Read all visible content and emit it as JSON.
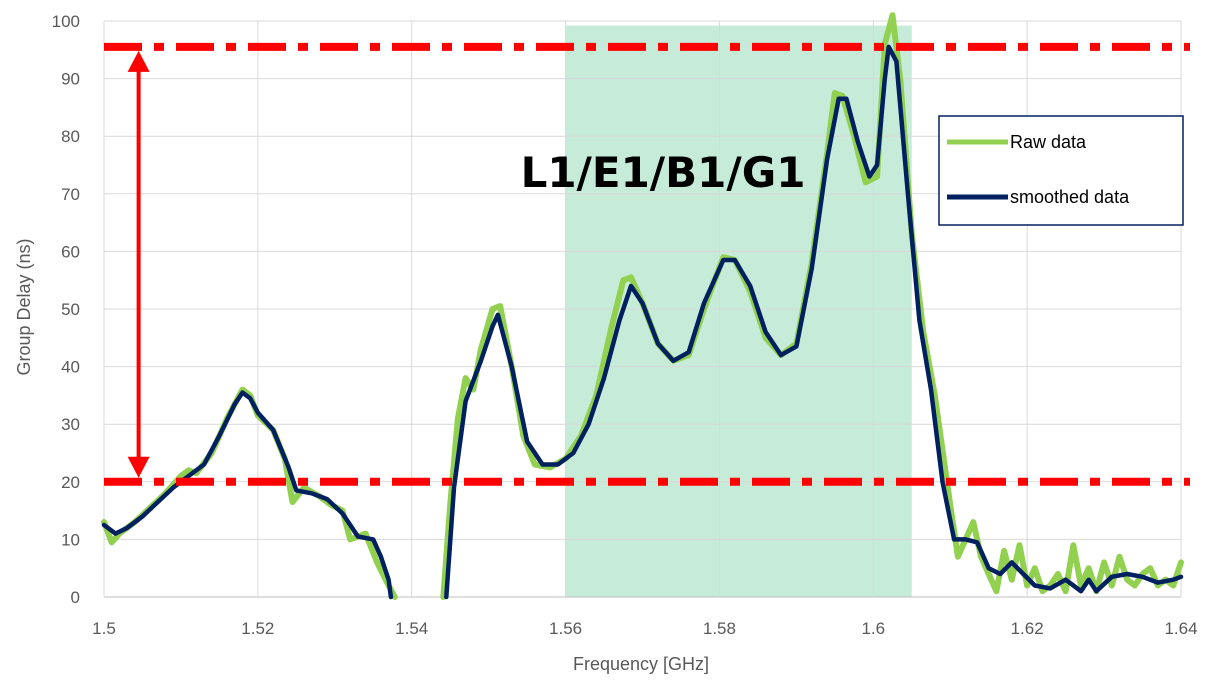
{
  "chart_data": {
    "type": "line",
    "title": "",
    "xlabel": "Frequency [GHz]",
    "ylabel": "Group Delay (ns)",
    "xlim": [
      1.5,
      1.64
    ],
    "ylim": [
      0,
      100
    ],
    "x_ticks": [
      "1.5",
      "1.52",
      "1.54",
      "1.56",
      "1.58",
      "1.6",
      "1.62",
      "1.64"
    ],
    "y_ticks": [
      "0",
      "10",
      "20",
      "30",
      "40",
      "50",
      "60",
      "70",
      "80",
      "90",
      "100"
    ],
    "grid": true,
    "legend_position": "right",
    "band": {
      "label": "L1/E1/B1/G1",
      "x_start": 1.56,
      "x_end": 1.605,
      "color": "#c6ebd9"
    },
    "reference_lines": [
      {
        "y": 95.5,
        "color": "#ff0000",
        "style": "dash-dot"
      },
      {
        "y": 20,
        "color": "#ff0000",
        "style": "dash-dot"
      }
    ],
    "range_arrow": {
      "x": 1.5045,
      "y_from": 20,
      "y_to": 95.5,
      "color": "#ff0000"
    },
    "series": [
      {
        "name": "Raw data",
        "color": "#92d050",
        "points": [
          [
            1.5,
            13
          ],
          [
            1.501,
            9.5
          ],
          [
            1.502,
            11
          ],
          [
            1.504,
            13
          ],
          [
            1.506,
            15.5
          ],
          [
            1.508,
            18
          ],
          [
            1.51,
            21
          ],
          [
            1.511,
            22
          ],
          [
            1.512,
            21.5
          ],
          [
            1.514,
            25
          ],
          [
            1.516,
            31
          ],
          [
            1.518,
            36
          ],
          [
            1.519,
            35
          ],
          [
            1.52,
            31.5
          ],
          [
            1.522,
            29
          ],
          [
            1.5235,
            24
          ],
          [
            1.5245,
            16.5
          ],
          [
            1.526,
            19
          ],
          [
            1.528,
            17.5
          ],
          [
            1.5295,
            16
          ],
          [
            1.531,
            15
          ],
          [
            1.532,
            10
          ],
          [
            1.534,
            11
          ],
          [
            1.5355,
            6
          ],
          [
            1.537,
            2
          ],
          [
            1.5378,
            0
          ],
          [
            1.5441,
            0
          ],
          [
            1.545,
            16
          ],
          [
            1.546,
            31
          ],
          [
            1.547,
            38
          ],
          [
            1.548,
            36
          ],
          [
            1.549,
            43
          ],
          [
            1.5505,
            50
          ],
          [
            1.5515,
            50.5
          ],
          [
            1.553,
            40
          ],
          [
            1.5545,
            28
          ],
          [
            1.556,
            23
          ],
          [
            1.558,
            22.5
          ],
          [
            1.56,
            24
          ],
          [
            1.562,
            28
          ],
          [
            1.564,
            35
          ],
          [
            1.566,
            47
          ],
          [
            1.5675,
            55
          ],
          [
            1.5685,
            55.5
          ],
          [
            1.57,
            51
          ],
          [
            1.572,
            44
          ],
          [
            1.574,
            41
          ],
          [
            1.576,
            42
          ],
          [
            1.578,
            50
          ],
          [
            1.5805,
            59
          ],
          [
            1.582,
            58.5
          ],
          [
            1.584,
            53
          ],
          [
            1.586,
            45
          ],
          [
            1.588,
            42
          ],
          [
            1.59,
            44
          ],
          [
            1.592,
            58
          ],
          [
            1.594,
            77
          ],
          [
            1.595,
            87.5
          ],
          [
            1.596,
            87
          ],
          [
            1.5975,
            80
          ],
          [
            1.599,
            72
          ],
          [
            1.6005,
            73
          ],
          [
            1.6015,
            96
          ],
          [
            1.6025,
            101
          ],
          [
            1.6035,
            90
          ],
          [
            1.605,
            63
          ],
          [
            1.6065,
            46
          ],
          [
            1.608,
            35
          ],
          [
            1.61,
            16
          ],
          [
            1.611,
            7
          ],
          [
            1.612,
            10
          ],
          [
            1.613,
            13
          ],
          [
            1.614,
            7
          ],
          [
            1.615,
            4
          ],
          [
            1.616,
            1
          ],
          [
            1.617,
            8
          ],
          [
            1.618,
            3
          ],
          [
            1.619,
            9
          ],
          [
            1.62,
            2
          ],
          [
            1.621,
            5
          ],
          [
            1.622,
            1
          ],
          [
            1.623,
            2
          ],
          [
            1.624,
            4
          ],
          [
            1.625,
            1
          ],
          [
            1.626,
            9
          ],
          [
            1.627,
            2
          ],
          [
            1.628,
            5
          ],
          [
            1.629,
            1
          ],
          [
            1.63,
            6
          ],
          [
            1.631,
            2
          ],
          [
            1.632,
            7
          ],
          [
            1.633,
            3
          ],
          [
            1.634,
            2
          ],
          [
            1.635,
            4
          ],
          [
            1.636,
            5
          ],
          [
            1.637,
            2
          ],
          [
            1.638,
            3
          ],
          [
            1.639,
            2
          ],
          [
            1.64,
            6
          ]
        ]
      },
      {
        "name": "smoothed data",
        "color": "#002060",
        "points": [
          [
            1.5,
            12.5
          ],
          [
            1.5015,
            11
          ],
          [
            1.503,
            12
          ],
          [
            1.505,
            14
          ],
          [
            1.507,
            16.5
          ],
          [
            1.509,
            19
          ],
          [
            1.511,
            21
          ],
          [
            1.513,
            23
          ],
          [
            1.515,
            28
          ],
          [
            1.517,
            33.5
          ],
          [
            1.518,
            35.5
          ],
          [
            1.519,
            34.5
          ],
          [
            1.52,
            32
          ],
          [
            1.522,
            29
          ],
          [
            1.524,
            22.5
          ],
          [
            1.525,
            18.5
          ],
          [
            1.527,
            18
          ],
          [
            1.529,
            17
          ],
          [
            1.531,
            14.5
          ],
          [
            1.533,
            10.5
          ],
          [
            1.535,
            10
          ],
          [
            1.536,
            7
          ],
          [
            1.537,
            3
          ],
          [
            1.5373,
            0
          ],
          [
            1.5445,
            0
          ],
          [
            1.5455,
            19
          ],
          [
            1.547,
            34
          ],
          [
            1.549,
            41
          ],
          [
            1.5505,
            47
          ],
          [
            1.5512,
            49
          ],
          [
            1.553,
            40
          ],
          [
            1.555,
            27
          ],
          [
            1.557,
            23
          ],
          [
            1.559,
            23
          ],
          [
            1.561,
            25
          ],
          [
            1.563,
            30
          ],
          [
            1.565,
            38
          ],
          [
            1.567,
            48
          ],
          [
            1.5685,
            54
          ],
          [
            1.57,
            51
          ],
          [
            1.572,
            44
          ],
          [
            1.574,
            41
          ],
          [
            1.576,
            42.5
          ],
          [
            1.578,
            51
          ],
          [
            1.5805,
            58.5
          ],
          [
            1.582,
            58.5
          ],
          [
            1.584,
            54
          ],
          [
            1.586,
            46
          ],
          [
            1.588,
            42
          ],
          [
            1.59,
            43.5
          ],
          [
            1.592,
            57
          ],
          [
            1.594,
            76
          ],
          [
            1.5955,
            86.5
          ],
          [
            1.5965,
            86.5
          ],
          [
            1.598,
            79
          ],
          [
            1.5995,
            73
          ],
          [
            1.6005,
            75
          ],
          [
            1.6015,
            90
          ],
          [
            1.602,
            95.5
          ],
          [
            1.603,
            93
          ],
          [
            1.6045,
            70
          ],
          [
            1.606,
            48
          ],
          [
            1.6075,
            36
          ],
          [
            1.609,
            20
          ],
          [
            1.6105,
            10
          ],
          [
            1.612,
            10
          ],
          [
            1.6135,
            9.5
          ],
          [
            1.615,
            5
          ],
          [
            1.6165,
            4
          ],
          [
            1.618,
            6
          ],
          [
            1.6195,
            4
          ],
          [
            1.621,
            2
          ],
          [
            1.623,
            1.5
          ],
          [
            1.625,
            3
          ],
          [
            1.627,
            1
          ],
          [
            1.628,
            3
          ],
          [
            1.629,
            1
          ],
          [
            1.631,
            3.5
          ],
          [
            1.633,
            4
          ],
          [
            1.635,
            3.5
          ],
          [
            1.637,
            2.5
          ],
          [
            1.639,
            3
          ],
          [
            1.64,
            3.5
          ]
        ]
      }
    ]
  }
}
